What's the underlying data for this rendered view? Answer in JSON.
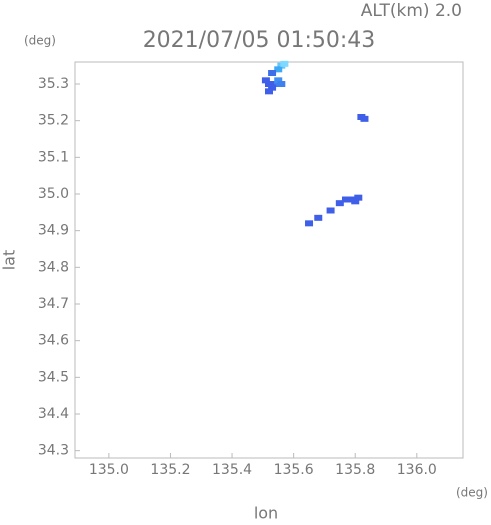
{
  "chart_data": {
    "type": "scatter",
    "title": "2021/07/05 01:50:43",
    "subtitle": "ALT(km) 2.0",
    "x_label": "lon",
    "y_label": "lat",
    "x_unit": "(deg)",
    "y_unit": "(deg)",
    "xlim": [
      134.89,
      136.15
    ],
    "ylim": [
      34.28,
      35.36
    ],
    "xticks": [
      {
        "value": 135.0,
        "label": "135.0"
      },
      135.2,
      135.4,
      135.6,
      135.8,
      {
        "value": 136.0,
        "label": "136.0"
      }
    ],
    "yticks": [
      35.3,
      35.2,
      35.1,
      {
        "value": 35.0,
        "label": "35.0"
      },
      34.9,
      34.8,
      34.7,
      34.6,
      34.5,
      34.4,
      34.3
    ],
    "x": [
      135.56,
      135.55,
      135.57,
      135.53,
      135.54,
      135.52,
      135.55,
      135.53,
      135.52,
      135.51,
      135.55,
      135.56,
      135.82,
      135.83,
      135.65,
      135.68,
      135.72,
      135.75,
      135.77,
      135.79,
      135.81,
      135.8
    ],
    "values": [
      35.35,
      35.34,
      35.355,
      35.33,
      35.3,
      35.3,
      35.3,
      35.29,
      35.28,
      35.31,
      35.31,
      35.3,
      35.21,
      35.205,
      34.92,
      34.935,
      34.955,
      34.975,
      34.985,
      34.985,
      34.99,
      34.98
    ],
    "colors": [
      "#5fc8ff",
      "#3fa8f5",
      "#7fd8ff",
      "#3f6fe8",
      "#3f5fe8",
      "#3f5fe8",
      "#3f7ff0",
      "#3f5fe8",
      "#3f5fe8",
      "#3f5fe8",
      "#3f8ff0",
      "#3f7ff0",
      "#3f5fe8",
      "#3f5fe8",
      "#3f5fe8",
      "#3f5fe8",
      "#3f5fe8",
      "#3f5fe8",
      "#3f5fe8",
      "#3f5fe8",
      "#3f5fe8",
      "#3f5fe8"
    ]
  }
}
